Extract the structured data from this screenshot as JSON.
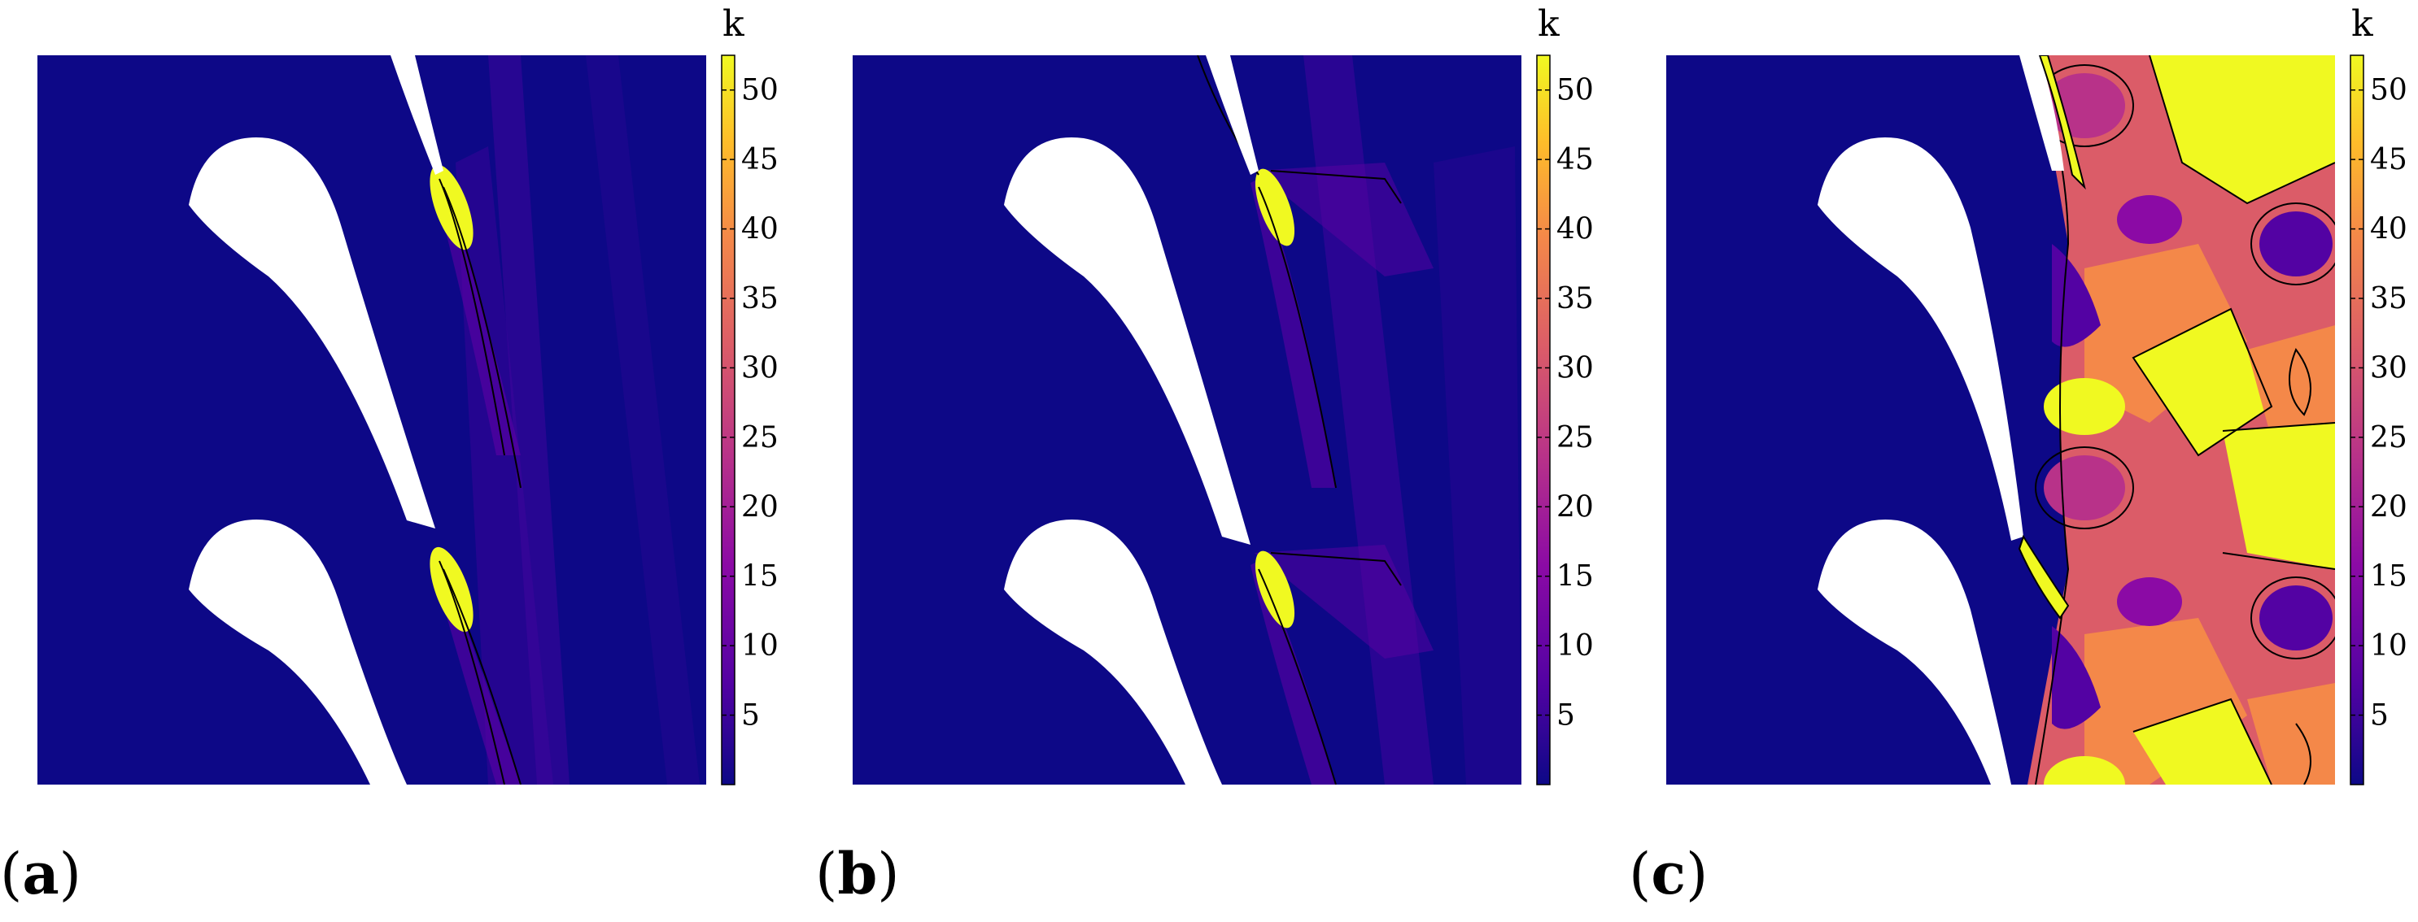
{
  "figure": {
    "panels": [
      {
        "id": "a",
        "letter": "a",
        "variant": "low"
      },
      {
        "id": "b",
        "letter": "b",
        "variant": "mid"
      },
      {
        "id": "c",
        "letter": "c",
        "variant": "high"
      }
    ],
    "colorbar": {
      "title": "k",
      "min": 0,
      "max": 52.5,
      "ticks": [
        5,
        10,
        15,
        20,
        25,
        30,
        35,
        40,
        45,
        50
      ],
      "tick_labels": [
        "5",
        "10",
        "15",
        "20",
        "25",
        "30",
        "35",
        "40",
        "45",
        "50"
      ],
      "colormap": "plasma",
      "colors": {
        "low": "#0d0887",
        "mid": "#9c179e",
        "high_mid": "#ed7953",
        "high": "#f0f921"
      }
    }
  }
}
